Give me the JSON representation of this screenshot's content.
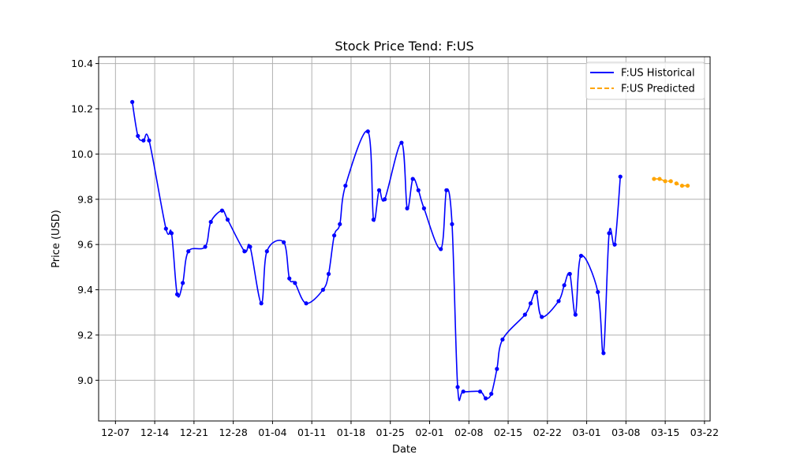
{
  "chart_data": {
    "type": "line",
    "title": "Stock Price Tend: F:US",
    "xlabel": "Date",
    "ylabel": "Price (USD)",
    "grid": true,
    "legend_position": "top-right",
    "xlim": [
      "2024-12-04",
      "2025-03-23"
    ],
    "ylim": [
      8.82,
      10.43
    ],
    "x_tick_dates": [
      "2024-12-07",
      "2024-12-14",
      "2024-12-21",
      "2024-12-28",
      "2025-01-04",
      "2025-01-11",
      "2025-01-18",
      "2025-01-25",
      "2025-02-01",
      "2025-02-08",
      "2025-02-15",
      "2025-02-22",
      "2025-03-01",
      "2025-03-08",
      "2025-03-15",
      "2025-03-22"
    ],
    "x_tick_labels": [
      "12-07",
      "12-14",
      "12-21",
      "12-28",
      "01-04",
      "01-11",
      "01-18",
      "01-25",
      "02-01",
      "02-08",
      "02-15",
      "02-22",
      "03-01",
      "03-08",
      "03-15",
      "03-22"
    ],
    "y_ticks": [
      9.0,
      9.2,
      9.4,
      9.6,
      9.8,
      10.0,
      10.2,
      10.4
    ],
    "y_tick_labels": [
      "9.0",
      "9.2",
      "9.4",
      "9.6",
      "9.8",
      "10.0",
      "10.2",
      "10.4"
    ],
    "series": [
      {
        "name": "F:US Historical",
        "color": "#0000ff",
        "line_style": "solid",
        "x": [
          "2024-12-10",
          "2024-12-11",
          "2024-12-12",
          "2024-12-13",
          "2024-12-16",
          "2024-12-17",
          "2024-12-18",
          "2024-12-19",
          "2024-12-20",
          "2024-12-23",
          "2024-12-24",
          "2024-12-26",
          "2024-12-27",
          "2024-12-30",
          "2024-12-31",
          "2025-01-02",
          "2025-01-03",
          "2025-01-06",
          "2025-01-07",
          "2025-01-08",
          "2025-01-10",
          "2025-01-13",
          "2025-01-14",
          "2025-01-15",
          "2025-01-16",
          "2025-01-17",
          "2025-01-21",
          "2025-01-22",
          "2025-01-23",
          "2025-01-24",
          "2025-01-27",
          "2025-01-28",
          "2025-01-29",
          "2025-01-30",
          "2025-01-31",
          "2025-02-03",
          "2025-02-04",
          "2025-02-05",
          "2025-02-06",
          "2025-02-07",
          "2025-02-10",
          "2025-02-11",
          "2025-02-12",
          "2025-02-13",
          "2025-02-14",
          "2025-02-18",
          "2025-02-19",
          "2025-02-20",
          "2025-02-21",
          "2025-02-24",
          "2025-02-25",
          "2025-02-26",
          "2025-02-27",
          "2025-02-28",
          "2025-03-03",
          "2025-03-04",
          "2025-03-05",
          "2025-03-06",
          "2025-03-07"
        ],
        "y": [
          10.23,
          10.08,
          10.06,
          10.06,
          9.67,
          9.65,
          9.38,
          9.43,
          9.57,
          9.59,
          9.7,
          9.75,
          9.71,
          9.57,
          9.59,
          9.34,
          9.57,
          9.61,
          9.45,
          9.43,
          9.34,
          9.4,
          9.47,
          9.64,
          9.69,
          9.86,
          10.1,
          9.71,
          9.84,
          9.8,
          10.05,
          9.76,
          9.89,
          9.84,
          9.76,
          9.58,
          9.84,
          9.69,
          8.97,
          8.95,
          8.95,
          8.92,
          8.94,
          9.05,
          9.18,
          9.29,
          9.34,
          9.39,
          9.28,
          9.35,
          9.42,
          9.47,
          9.29,
          9.55,
          9.39,
          9.12,
          9.65,
          9.6,
          9.9
        ]
      },
      {
        "name": "F:US Predicted",
        "color": "#ffa500",
        "line_style": "dashed",
        "x": [
          "2025-03-13",
          "2025-03-14",
          "2025-03-15",
          "2025-03-16",
          "2025-03-17",
          "2025-03-18",
          "2025-03-19"
        ],
        "y": [
          9.89,
          9.89,
          9.88,
          9.88,
          9.87,
          9.86,
          9.86
        ]
      }
    ]
  }
}
